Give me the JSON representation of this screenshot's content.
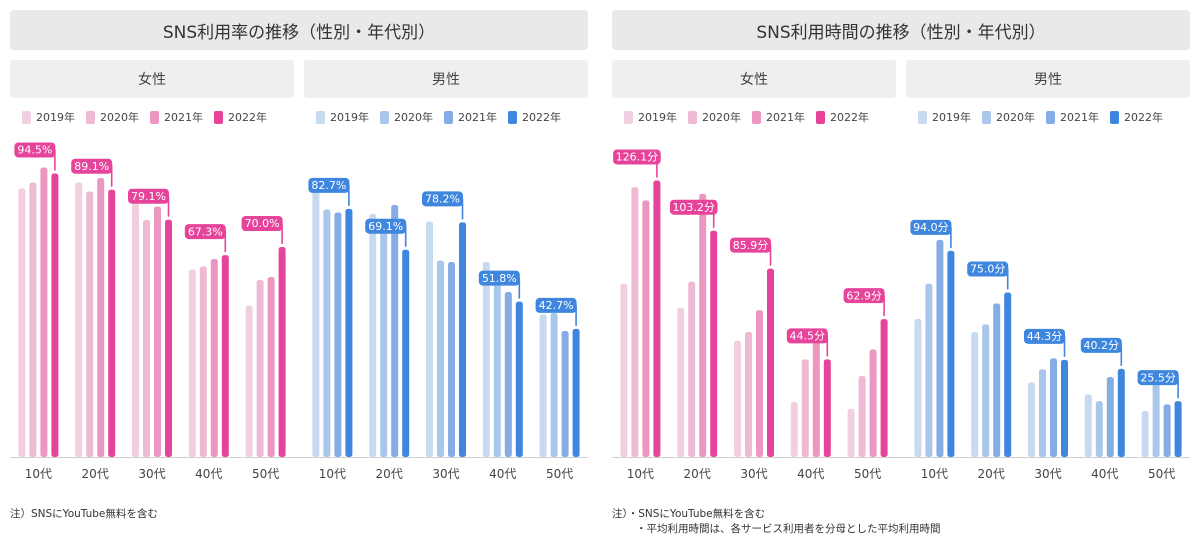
{
  "titles": {
    "left": "SNS利用率の推移（性別・年代別）",
    "right": "SNS利用時間の推移（性別・年代別）"
  },
  "groups": {
    "female": "女性",
    "male": "男性"
  },
  "legend": [
    "2019年",
    "2020年",
    "2021年",
    "2022年"
  ],
  "colors": {
    "female": [
      "#f2cfe0",
      "#eeb9d3",
      "#eb97c1",
      "#e6449a"
    ],
    "male": [
      "#c7daf0",
      "#a9c6eb",
      "#85ace4",
      "#3f86de"
    ]
  },
  "notes": {
    "left": "注）SNSにYouTube無料を含む",
    "right_1": "注）・SNSにYouTube無料を含む",
    "right_2": "・平均利用時間は、各サービス利用者を分母とした平均利用時間"
  },
  "chart_data": [
    {
      "type": "bar",
      "title": "SNS利用率の推移（性別・年代別）",
      "unit": "%",
      "categories": [
        "10代",
        "20代",
        "30代",
        "40代",
        "50代"
      ],
      "ylim": [
        0,
        105
      ],
      "panels": [
        {
          "name": "女性",
          "series": [
            {
              "name": "2019年",
              "values": [
                89.5,
                91.5,
                84.5,
                62.5,
                50.5
              ]
            },
            {
              "name": "2020年",
              "values": [
                91.5,
                88.5,
                79.0,
                63.5,
                59.0
              ]
            },
            {
              "name": "2021年",
              "values": [
                96.5,
                93.0,
                83.5,
                66.0,
                60.0
              ]
            },
            {
              "name": "2022年",
              "values": [
                94.5,
                89.1,
                79.1,
                67.3,
                70.0
              ]
            }
          ],
          "labels": [
            "94.5%",
            "89.1%",
            "79.1%",
            "67.3%",
            "70.0%"
          ]
        },
        {
          "name": "男性",
          "series": [
            {
              "name": "2019年",
              "values": [
                93.0,
                81.0,
                78.5,
                65.0,
                47.5
              ]
            },
            {
              "name": "2020年",
              "values": [
                82.5,
                78.0,
                65.5,
                57.5,
                48.0
              ]
            },
            {
              "name": "2021年",
              "values": [
                81.5,
                84.0,
                65.0,
                55.0,
                42.0
              ]
            },
            {
              "name": "2022年",
              "values": [
                82.7,
                69.1,
                78.2,
                51.8,
                42.7
              ]
            }
          ],
          "labels": [
            "82.7%",
            "69.1%",
            "78.2%",
            "51.8%",
            "42.7%"
          ]
        }
      ]
    },
    {
      "type": "bar",
      "title": "SNS利用時間の推移（性別・年代別）",
      "unit": "分",
      "categories": [
        "10代",
        "20代",
        "30代",
        "40代",
        "50代"
      ],
      "ylim": [
        0,
        140
      ],
      "panels": [
        {
          "name": "女性",
          "series": [
            {
              "name": "2019年",
              "values": [
                79.0,
                68.0,
                53.0,
                25.0,
                22.0
              ]
            },
            {
              "name": "2020年",
              "values": [
                123.0,
                80.0,
                57.0,
                44.5,
                37.0
              ]
            },
            {
              "name": "2021年",
              "values": [
                117.0,
                120.0,
                67.0,
                58.0,
                49.0
              ]
            },
            {
              "name": "2022年",
              "values": [
                126.1,
                103.2,
                85.9,
                44.5,
                62.9
              ]
            }
          ],
          "labels": [
            "126.1分",
            "103.2分",
            "85.9分",
            "44.5分",
            "62.9分"
          ]
        },
        {
          "name": "男性",
          "series": [
            {
              "name": "2019年",
              "values": [
                63.0,
                57.0,
                34.0,
                28.5,
                21.0
              ]
            },
            {
              "name": "2020年",
              "values": [
                79.0,
                60.5,
                40.0,
                25.5,
                33.5
              ]
            },
            {
              "name": "2021年",
              "values": [
                99.0,
                70.0,
                45.0,
                36.5,
                24.0
              ]
            },
            {
              "name": "2022年",
              "values": [
                94.0,
                75.0,
                44.3,
                40.2,
                25.5
              ]
            }
          ],
          "labels": [
            "94.0分",
            "75.0分",
            "44.3分",
            "40.2分",
            "25.5分"
          ]
        }
      ]
    }
  ]
}
